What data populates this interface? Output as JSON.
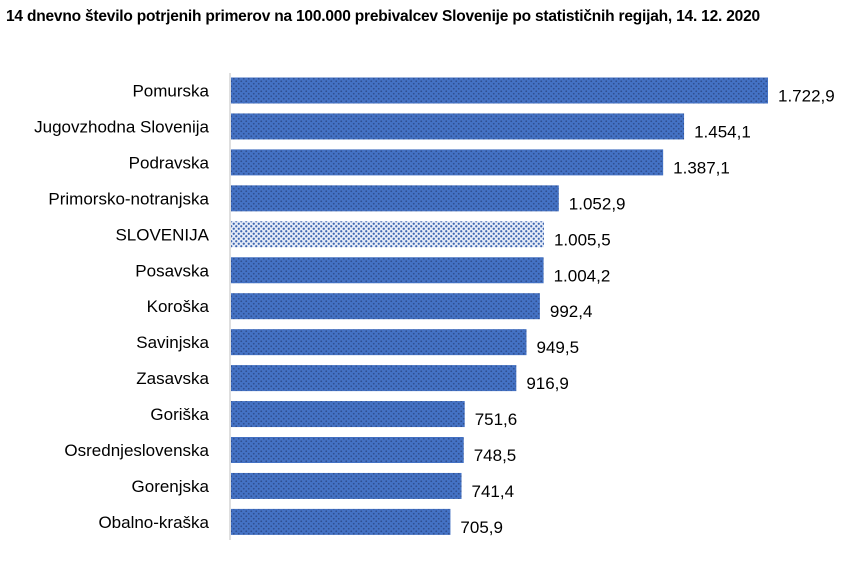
{
  "chart_data": {
    "type": "bar",
    "orientation": "horizontal",
    "title": "14 dnevno število potrjenih primerov na 100.000 prebivalcev Slovenije po statističnih regijah, 14. 12. 2020",
    "categories": [
      "Pomurska",
      "Jugovzhodna Slovenija",
      "Podravska",
      "Primorsko-notranjska",
      "SLOVENIJA",
      "Posavska",
      "Koroška",
      "Savinjska",
      "Zasavska",
      "Goriška",
      "Osrednjeslovenska",
      "Gorenjska",
      "Obalno-kraška"
    ],
    "values": [
      1722.9,
      1454.1,
      1387.1,
      1052.9,
      1005.5,
      1004.2,
      992.4,
      949.5,
      916.9,
      751.6,
      748.5,
      741.4,
      705.9
    ],
    "value_labels": [
      "1.722,9",
      "1.454,1",
      "1.387,1",
      "1.052,9",
      "1.005,5",
      "1.004,2",
      "992,4",
      "949,5",
      "916,9",
      "751,6",
      "748,5",
      "741,4",
      "705,9"
    ],
    "highlight_category": "SLOVENIJA",
    "xlim": [
      0,
      1722.9
    ],
    "grid": false,
    "legend": "none",
    "colors": {
      "bar_base": "#4472c4",
      "bar_dots": "#2f4f8f",
      "highlight_base": "#e6ecf7",
      "highlight_dots": "#3b64b0",
      "axis": "#bfbfbf"
    }
  }
}
